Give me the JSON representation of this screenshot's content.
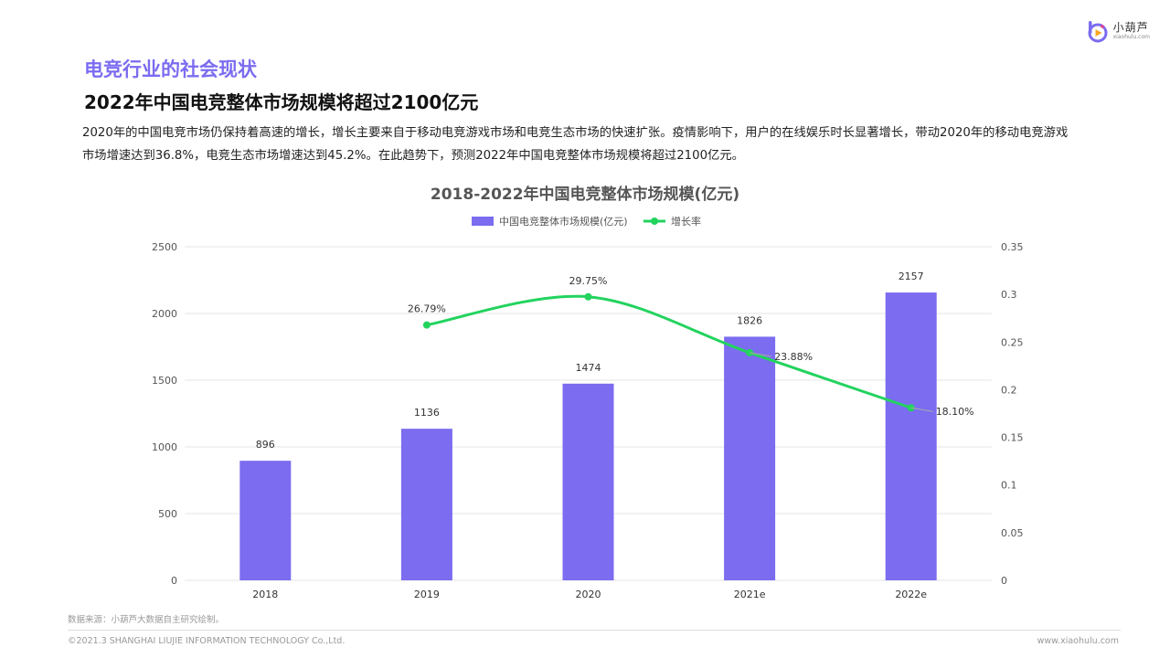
{
  "brand": {
    "name_cn": "小葫芦",
    "name_en": "xiaohulu.com"
  },
  "section_title": "电竞行业的社会现状",
  "subtitle": "2022年中国电竞整体市场规模将超过2100亿元",
  "paragraph": "2020年的中国电竞市场仍保持着高速的增长，增长主要来自于移动电竞游戏市场和电竞生态市场的快速扩张。疫情影响下，用户的在线娱乐时长显著增长，带动2020年的移动电竞游戏市场增速达到36.8%，电竞生态市场增速达到45.2%。在此趋势下，预测2022年中国电竞整体市场规模将超过2100亿元。",
  "chart_data": {
    "type": "bar",
    "title": "2018-2022年中国电竞整体市场规模(亿元)",
    "categories": [
      "2018",
      "2019",
      "2020",
      "2021e",
      "2022e"
    ],
    "series": [
      {
        "name": "中国电竞整体市场规模(亿元)",
        "type": "bar",
        "axis": "left",
        "values": [
          896,
          1136,
          1474,
          1826,
          2157
        ],
        "labels": [
          "896",
          "1136",
          "1474",
          "1826",
          "2157"
        ],
        "color": "#7B6CF0"
      },
      {
        "name": "增长率",
        "type": "line",
        "axis": "right",
        "smooth": true,
        "values": [
          null,
          0.2679,
          0.2975,
          0.2388,
          0.181
        ],
        "labels": [
          "",
          "26.79%",
          "29.75%",
          "23.88%",
          "18.10%"
        ],
        "color": "#22D35E"
      }
    ],
    "y_left": {
      "min": 0,
      "max": 2500,
      "ticks": [
        "0",
        "500",
        "1000",
        "1500",
        "2000",
        "2500"
      ]
    },
    "y_right": {
      "min": 0,
      "max": 0.35,
      "ticks": [
        "0",
        "0.05",
        "0.1",
        "0.15",
        "0.2",
        "0.25",
        "0.3",
        "0.35"
      ]
    },
    "grid": true,
    "legend_position": "top-center"
  },
  "source": "数据来源：小葫芦大数据自主研究绘制。",
  "copyright": "©2021.3 SHANGHAI LIUJIE INFORMATION  TECHNOLOGY Co.,Ltd.",
  "site": "www.xiaohulu.com",
  "colors": {
    "accent": "#7B6CF0",
    "line": "#22D35E",
    "logo_pink": "#E83E8C",
    "logo_orange": "#F5A623"
  }
}
